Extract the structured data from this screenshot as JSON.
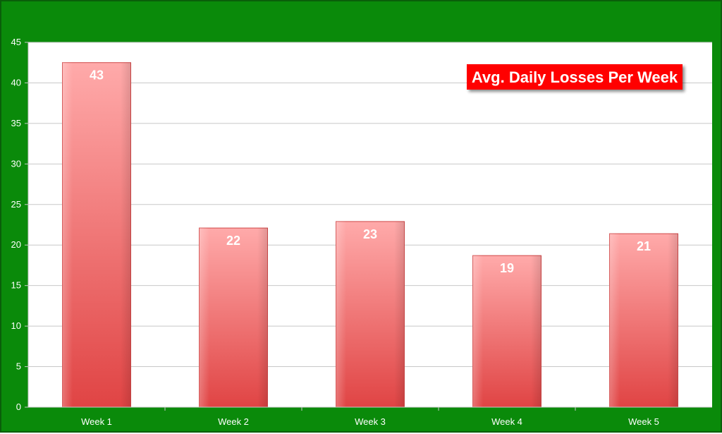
{
  "chart_data": {
    "type": "bar",
    "title": "Avg. Daily Losses Per Week",
    "xlabel": "",
    "ylabel": "",
    "categories": [
      "Week 1",
      "Week 2",
      "Week 3",
      "Week 4",
      "Week 5"
    ],
    "values": [
      42.5,
      22.1,
      22.9,
      18.7,
      21.4
    ],
    "data_labels": [
      "43",
      "22",
      "23",
      "19",
      "21"
    ],
    "ylim": [
      0,
      45
    ],
    "yticks": [
      "0",
      "5",
      "10",
      "15",
      "20",
      "25",
      "30",
      "35",
      "40",
      "45"
    ],
    "grid": true,
    "legend": "none",
    "title_position": "top-right"
  },
  "colors": {
    "frame_background": "#0a8a0a",
    "plot_background": "#ffffff",
    "gridline": "#c8c8c8",
    "bar_top": "#ffaaaa",
    "bar_bottom": "#e04444",
    "title_background": "#ff0000",
    "text": "#ffffff"
  }
}
